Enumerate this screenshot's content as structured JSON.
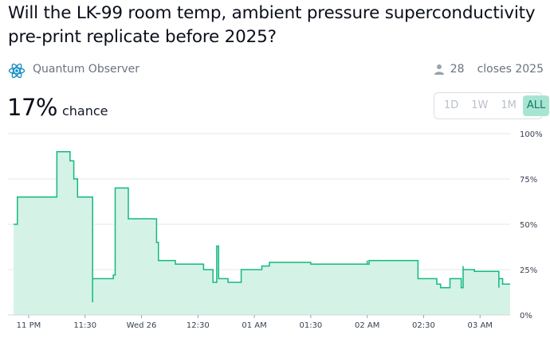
{
  "market": {
    "title": "Will the LK-99 room temp, ambient pressure superconductivity pre-print replicate before 2025?",
    "creator": "Quantum Observer",
    "traders": "28",
    "closes": "closes 2025",
    "probability": "17%",
    "probability_label": "chance"
  },
  "time_range": {
    "options": [
      "1D",
      "1W",
      "1M",
      "ALL"
    ],
    "selected": "ALL"
  },
  "colors": {
    "line": "#11b981",
    "fill": "#d5f2e7",
    "active_bg": "#a7e5d2"
  },
  "icons": {
    "creator": "atom-icon",
    "traders": "user-icon"
  },
  "chart_data": {
    "type": "area",
    "x_tick_labels": [
      "11 PM",
      "11:30",
      "Wed 26",
      "12:30",
      "01 AM",
      "01:30",
      "02 AM",
      "02:30",
      "03 AM"
    ],
    "y_tick_labels": [
      "100%",
      "75%",
      "50%",
      "25%",
      "0%"
    ],
    "ylim": [
      0,
      100
    ],
    "grid": true,
    "x": [
      "10:52 PM",
      "10:54 PM",
      "11:14 PM",
      "11:15 PM",
      "11:22 PM",
      "11:24 PM",
      "11:26 PM",
      "11:29 PM",
      "11:34 PM",
      "11:34 PM",
      "11:45 PM",
      "11:45 PM",
      "11:46 PM",
      "11:53 PM",
      "12:08 AM",
      "12:08 AM",
      "12:09 AM",
      "12:18 AM",
      "12:33 AM",
      "12:38 AM",
      "12:40 AM",
      "12:40 AM",
      "12:41 AM",
      "12:46 AM",
      "12:53 AM",
      "12:54 AM",
      "1:00 AM",
      "1:04 AM",
      "1:08 AM",
      "1:30 AM",
      "2:00 AM",
      "2:00 AM",
      "2:01 AM",
      "2:16 AM",
      "2:27 AM",
      "2:37 AM",
      "2:39 AM",
      "2:40 AM",
      "2:44 AM",
      "2:50 AM",
      "2:51 AM",
      "2:51 AM",
      "2:57 AM",
      "3:10 AM",
      "3:10 AM",
      "3:12 AM"
    ],
    "values": [
      50,
      65,
      65,
      90,
      85,
      75,
      65,
      65,
      7,
      20,
      22,
      22,
      70,
      53,
      45,
      40,
      30,
      28,
      25,
      18,
      23,
      38,
      20,
      18,
      25,
      25,
      25,
      27,
      29,
      28,
      30,
      28,
      30,
      30,
      20,
      17,
      15,
      15,
      20,
      15,
      27,
      25,
      24,
      15,
      20,
      17
    ]
  }
}
